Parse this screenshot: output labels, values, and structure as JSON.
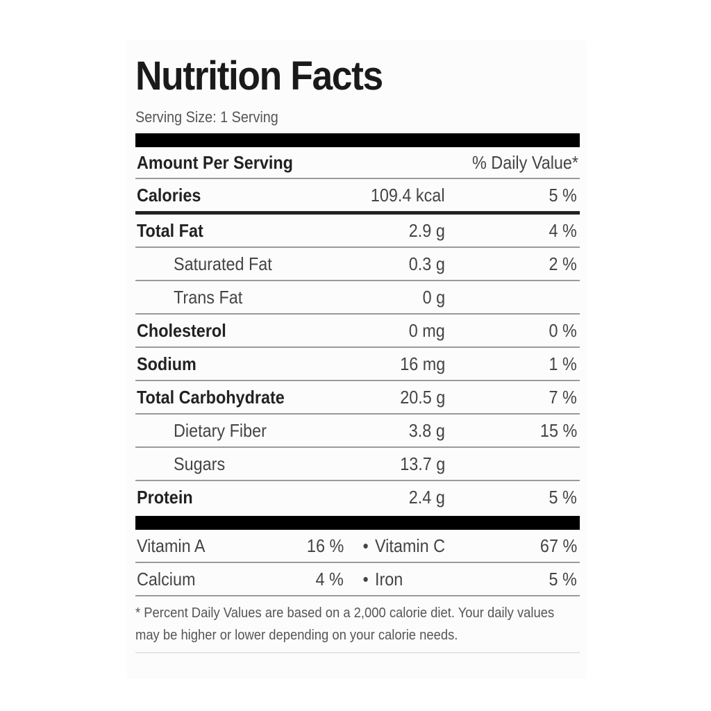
{
  "label": {
    "title": "Nutrition Facts",
    "serving_size": "Serving Size: 1 Serving",
    "header": {
      "amount_per_serving": "Amount Per Serving",
      "daily_value": "% Daily Value*"
    },
    "rows": [
      {
        "name": "Calories",
        "amount": "109.4 kcal",
        "dv": "5 %"
      },
      {
        "name": "Total Fat",
        "amount": "2.9 g",
        "dv": "4 %"
      },
      {
        "name": "Saturated Fat",
        "amount": "0.3 g",
        "dv": "2 %"
      },
      {
        "name": "Trans Fat",
        "amount": "0 g",
        "dv": ""
      },
      {
        "name": "Cholesterol",
        "amount": "0 mg",
        "dv": "0 %"
      },
      {
        "name": "Sodium",
        "amount": "16 mg",
        "dv": "1 %"
      },
      {
        "name": "Total Carbohydrate",
        "amount": "20.5 g",
        "dv": "7 %"
      },
      {
        "name": "Dietary Fiber",
        "amount": "3.8 g",
        "dv": "15 %"
      },
      {
        "name": "Sugars",
        "amount": "13.7 g",
        "dv": ""
      },
      {
        "name": "Protein",
        "amount": "2.4 g",
        "dv": "5 %"
      }
    ],
    "vitamins": [
      {
        "name1": "Vitamin A",
        "pct1": "16 %",
        "name2": "Vitamin C",
        "pct2": "67 %"
      },
      {
        "name1": "Calcium",
        "pct1": "4 %",
        "name2": "Iron",
        "pct2": "5 %"
      }
    ],
    "separator": "•",
    "footnote": "* Percent Daily Values are based on a 2,000 calorie diet. Your daily values may be higher or lower depending on your calorie needs."
  }
}
